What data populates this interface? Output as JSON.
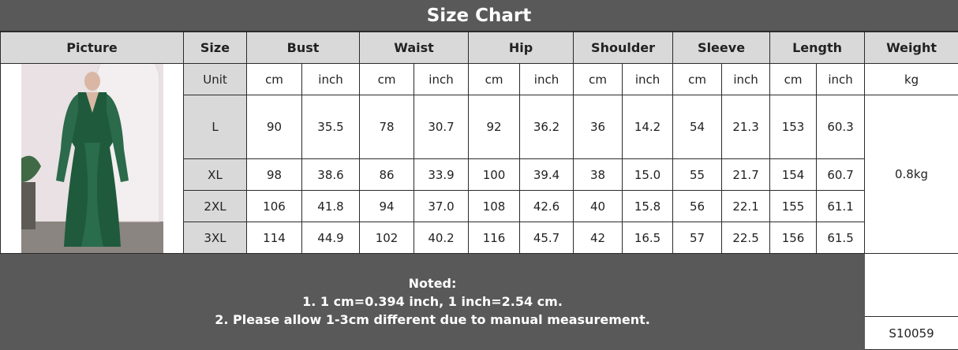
{
  "title": "Size Chart",
  "headers": [
    "Picture",
    "Size",
    "Bust",
    "Waist",
    "Hip",
    "Shoulder",
    "Sleeve",
    "Length",
    "Weight"
  ],
  "unit_row": {
    "label": "Unit",
    "units": [
      "cm",
      "inch",
      "cm",
      "inch",
      "cm",
      "inch",
      "cm",
      "inch",
      "cm",
      "inch",
      "cm",
      "inch"
    ],
    "weight_unit": "kg"
  },
  "rows": [
    {
      "size": "L",
      "values": [
        "90",
        "35.5",
        "78",
        "30.7",
        "92",
        "36.2",
        "36",
        "14.2",
        "54",
        "21.3",
        "153",
        "60.3"
      ]
    },
    {
      "size": "XL",
      "values": [
        "98",
        "38.6",
        "86",
        "33.9",
        "100",
        "39.4",
        "38",
        "15.0",
        "55",
        "21.7",
        "154",
        "60.7"
      ]
    },
    {
      "size": "2XL",
      "values": [
        "106",
        "41.8",
        "94",
        "37.0",
        "108",
        "42.6",
        "40",
        "15.8",
        "56",
        "22.1",
        "155",
        "61.1"
      ]
    },
    {
      "size": "3XL",
      "values": [
        "114",
        "44.9",
        "102",
        "40.2",
        "116",
        "45.7",
        "42",
        "16.5",
        "57",
        "22.5",
        "156",
        "61.5"
      ]
    }
  ],
  "weight": "0.8kg",
  "product_code": "S10059",
  "notes": {
    "heading": "Noted:",
    "lines": [
      "1. 1 cm=0.394 inch, 1 inch=2.54 cm.",
      "2. Please allow 1-3cm different due to manual measurement."
    ]
  },
  "colors": {
    "title_bg": "#595959",
    "header_bg": "#d9d9d9",
    "dress": "#1f5a3c"
  }
}
